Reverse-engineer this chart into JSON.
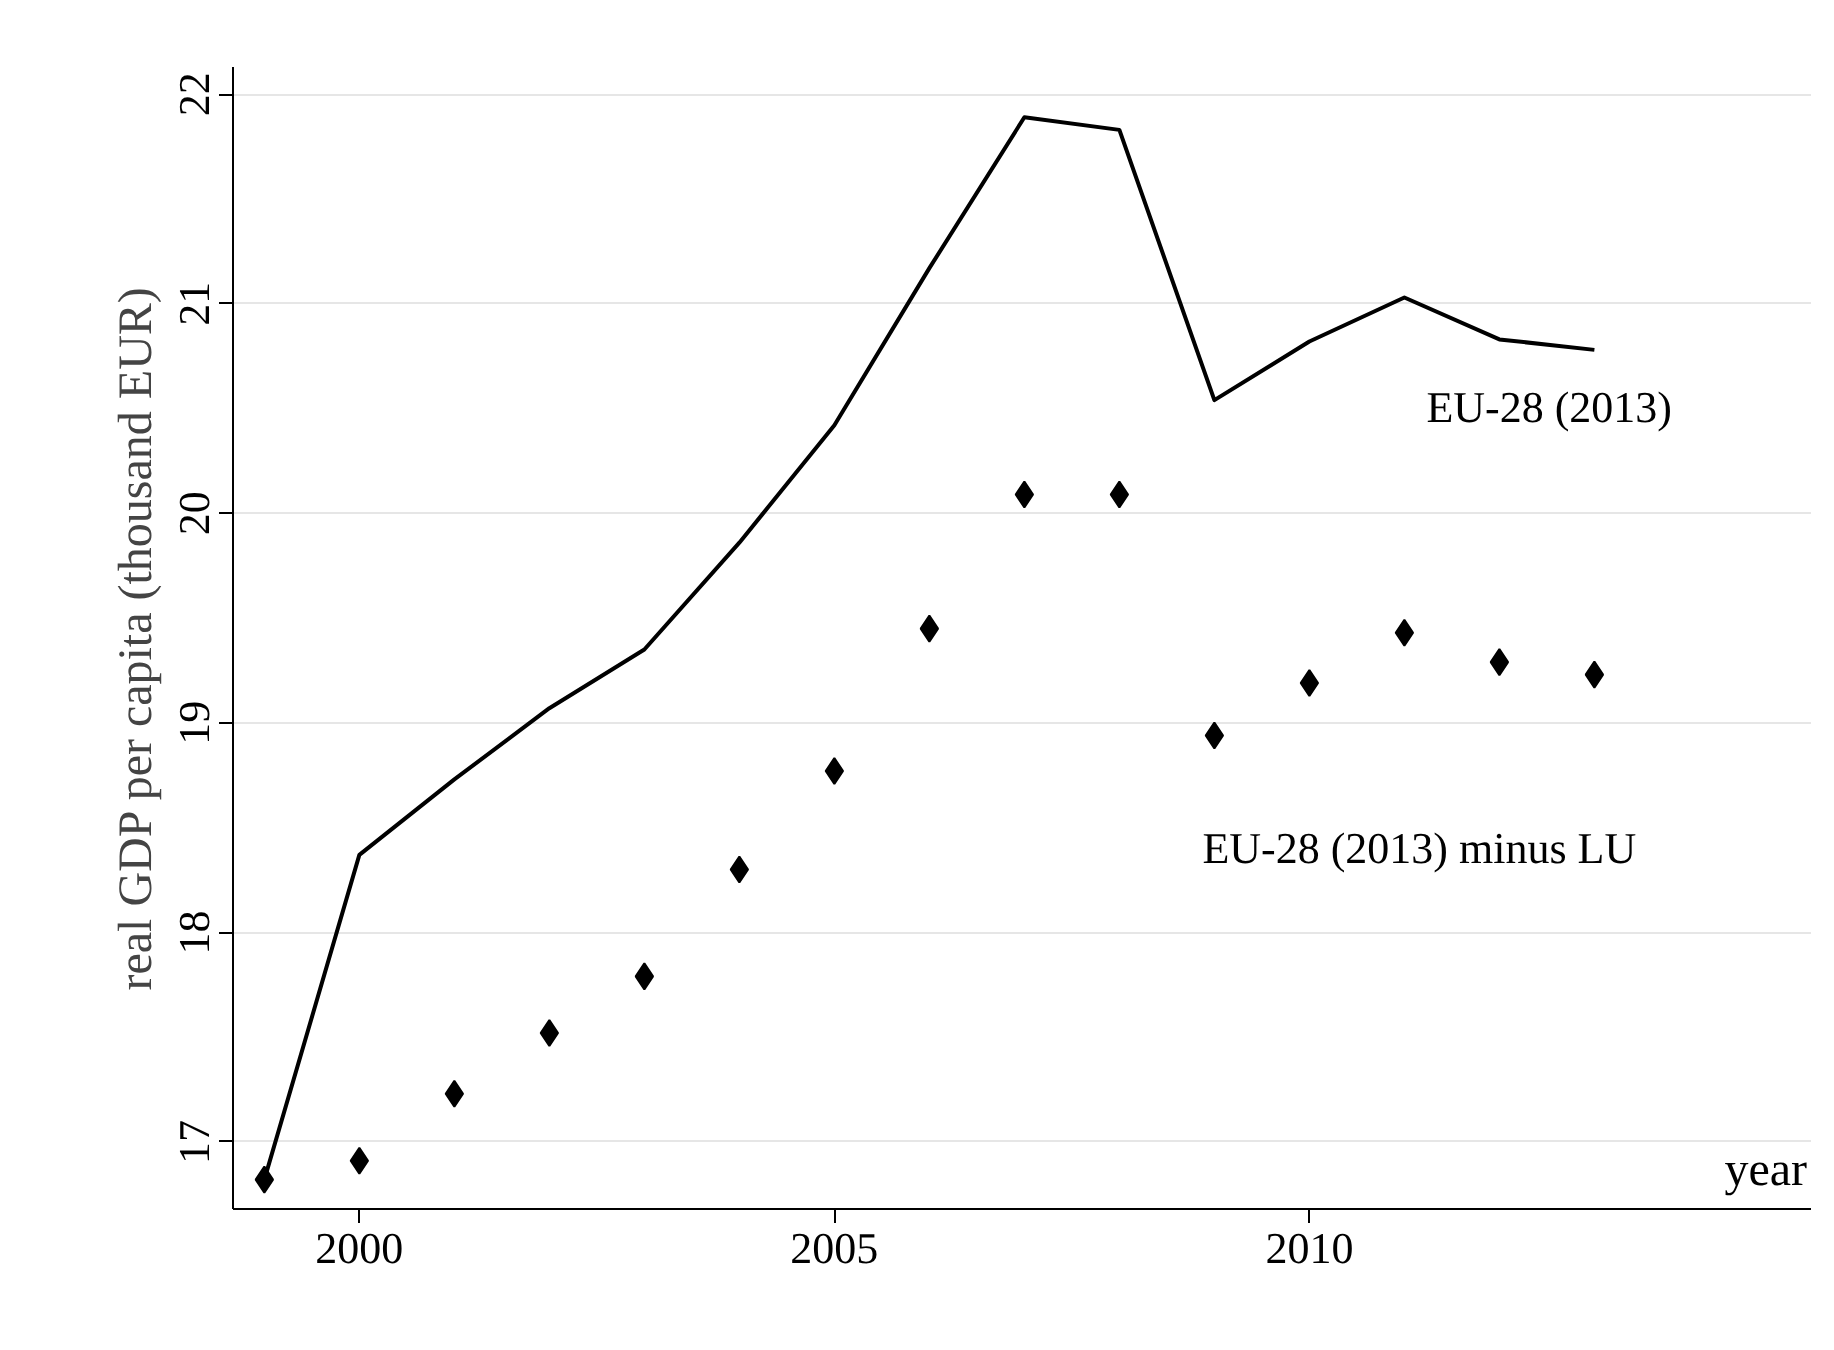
{
  "chart_data": {
    "type": "line",
    "xlabel": "year",
    "ylabel": "real GDP per capita (thousand EUR)",
    "x": [
      1999,
      2000,
      2001,
      2002,
      2003,
      2004,
      2005,
      2006,
      2007,
      2008,
      2009,
      2010,
      2011,
      2012,
      2013
    ],
    "series": [
      {
        "name": "EU-28 (2013)",
        "color": "#000000",
        "marker": "none",
        "line_style": "solid",
        "values": [
          16.82,
          18.37,
          18.73,
          19.07,
          19.35,
          19.86,
          20.42,
          21.17,
          21.89,
          21.83,
          20.54,
          20.82,
          21.03,
          20.83,
          20.78
        ]
      },
      {
        "name": "EU-28 (2013) minus LU",
        "type": "scatter",
        "color": "#000000",
        "marker": "diamond",
        "values": [
          16.82,
          16.91,
          17.23,
          17.52,
          17.79,
          18.3,
          18.77,
          19.45,
          20.09,
          20.09,
          18.94,
          19.19,
          19.43,
          19.29,
          19.23
        ]
      }
    ],
    "xlim": [
      1998.67,
      2015.28
    ],
    "ylim": [
      16.68,
      22.13
    ],
    "xticks": [
      2000,
      2005,
      2010
    ],
    "yticks": [
      17,
      18,
      19,
      20,
      21,
      22
    ],
    "grid": "y"
  }
}
